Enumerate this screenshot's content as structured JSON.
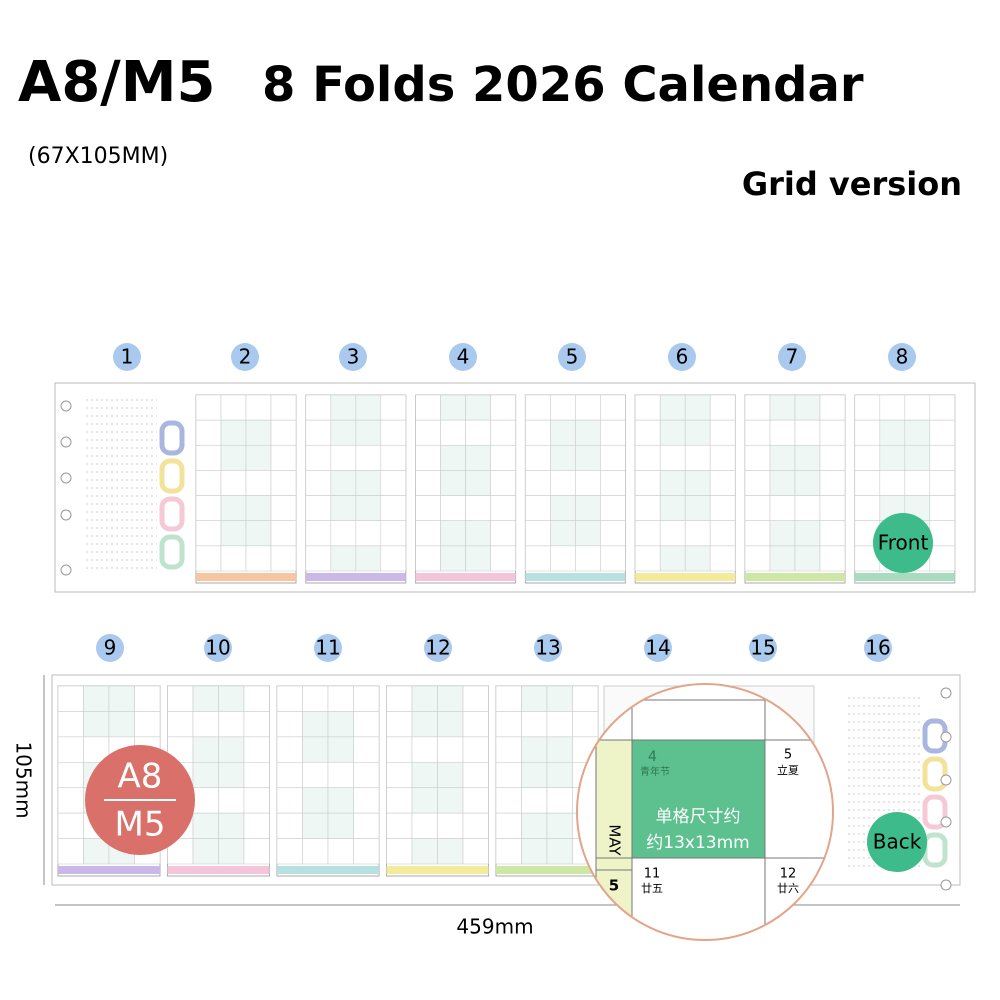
{
  "header": {
    "title": "A8/M5",
    "subtitle": "8 Folds 2026 Calendar",
    "size": "(67X105MM)",
    "version": "Grid version"
  },
  "front": {
    "panels": [
      "1",
      "2",
      "3",
      "4",
      "5",
      "6",
      "7",
      "8"
    ],
    "label": "Front"
  },
  "back": {
    "panels": [
      "9",
      "10",
      "11",
      "12",
      "13",
      "14",
      "15",
      "16"
    ],
    "label": "Back"
  },
  "badge": {
    "top": "A8",
    "bottom": "M5"
  },
  "dimensions": {
    "height": "105mm",
    "width": "459mm"
  },
  "zoom": {
    "month": "MAY",
    "week": "5",
    "cells": [
      {
        "day": "4",
        "note": "青年节"
      },
      {
        "day": "5",
        "note": "立夏"
      },
      {
        "day": "11",
        "note": "廿五"
      },
      {
        "day": "12",
        "note": "廿六"
      }
    ],
    "caption": [
      "单格尺寸约",
      "约13x13mm"
    ]
  }
}
